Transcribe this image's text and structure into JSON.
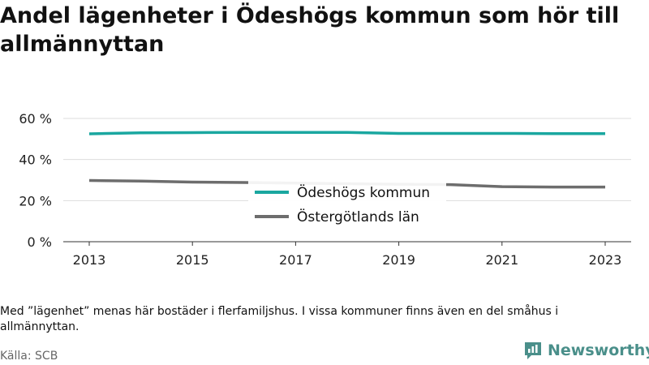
{
  "title": "Andel lägenheter i Ödeshögs kommun som hör till allmännyttan",
  "note": "Med ”lägenhet” menas här bostäder i flerfamiljshus. I vissa kommuner finns även en del småhus i allmännyttan.",
  "source": "Källa: SCB",
  "brand": {
    "name": "Newsworthy",
    "color": "#4a8f8a"
  },
  "chart_data": {
    "type": "line",
    "x": [
      2013,
      2014,
      2015,
      2016,
      2017,
      2018,
      2019,
      2020,
      2021,
      2022,
      2023
    ],
    "x_ticks": [
      "2013",
      "2015",
      "2017",
      "2019",
      "2021",
      "2023"
    ],
    "y_ticks": [
      "0 %",
      "20 %",
      "40 %",
      "60 %"
    ],
    "ylim": [
      0,
      60
    ],
    "grid": "horizontal",
    "legend_position": "center",
    "series": [
      {
        "name": "Ödeshögs kommun",
        "color": "#1aa7a0",
        "values": [
          52.5,
          53.0,
          53.1,
          53.2,
          53.2,
          53.2,
          52.7,
          52.7,
          52.7,
          52.6,
          52.6
        ]
      },
      {
        "name": "Östergötlands län",
        "color": "#6d6d6d",
        "values": [
          29.8,
          29.5,
          29.0,
          28.8,
          28.5,
          28.2,
          28.0,
          27.8,
          26.8,
          26.6,
          26.6
        ]
      }
    ]
  }
}
